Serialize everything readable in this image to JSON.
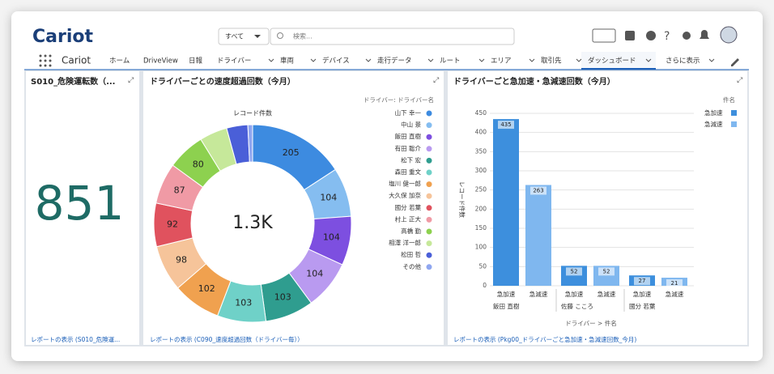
{
  "header": {
    "logo": "Cariot",
    "search_scope": "すべて",
    "search_placeholder": "検索..."
  },
  "nav": {
    "app": "Cariot",
    "tabs": [
      "ホーム",
      "DriveView",
      "日報",
      "ドライバー",
      "車両",
      "デバイス",
      "走行データ",
      "ルート",
      "エリア",
      "取引先",
      "ダッシュボード",
      "さらに表示"
    ]
  },
  "panels": [
    {
      "title": "S010_危険運転数（...",
      "value": 851,
      "footer": "レポートの表示 (S010_危険運..."
    },
    {
      "title": "ドライバーごとの速度超過回数（今月）",
      "footer": "レポートの表示 (C090_速度超過回数（ドライバー毎））"
    },
    {
      "title": "ドライバーごと急加速・急減速回数（今月）",
      "footer": "レポートの表示 (Pkg00_ドライバーごと急加速・急減速回数_今月)"
    }
  ],
  "chart_data": [
    {
      "type": "donut",
      "label": "レコード件数",
      "center_label": "1.3K",
      "legend_title": "ドライバー: ドライバー名",
      "categories": [
        "山下 幸一",
        "中山 景",
        "飯田 直樹",
        "有田 聡介",
        "松下 宏",
        "森田 重文",
        "塩川 健一郎",
        "大久保 加奈",
        "國分 若葉",
        "村上 正大",
        "高橋 勤",
        "相澤 洋一郎",
        "松田 哲",
        "その他"
      ],
      "values": [
        205,
        104,
        104,
        104,
        103,
        103,
        102,
        98,
        92,
        87,
        80,
        59,
        45,
        10
      ],
      "colors": [
        "#3d8be0",
        "#85bdf0",
        "#7d4fe0",
        "#b99af0",
        "#2f9d8f",
        "#6fd1c8",
        "#f0a14f",
        "#f6c49a",
        "#e0525e",
        "#f09aa5",
        "#8dd14f",
        "#c6e89a",
        "#4a5fd8",
        "#8fa6f0"
      ]
    },
    {
      "type": "bar",
      "categories": [
        "飯田 直樹",
        "佐藤 こころ",
        "國分 若葉"
      ],
      "series": [
        {
          "name": "急加速",
          "color": "#3d8fdd",
          "values": [
            435,
            52,
            27
          ]
        },
        {
          "name": "急減速",
          "color": "#7fb7ef",
          "values": [
            263,
            52,
            21
          ]
        }
      ],
      "ylim": [
        0,
        450
      ],
      "yticks": [
        0,
        50,
        100,
        150,
        200,
        250,
        300,
        350,
        400,
        450
      ],
      "grid": true,
      "x_label": "ドライバー > 件名",
      "y_label": "レコード件数",
      "legend_title": "件名"
    }
  ]
}
